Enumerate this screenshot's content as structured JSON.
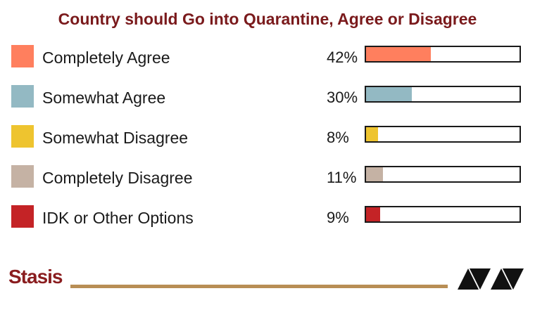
{
  "chart_data": {
    "type": "bar",
    "title": "Country should Go into Quarantine, Agree or Disagree",
    "categories": [
      "Completely Agree",
      "Somewhat Agree",
      "Somewhat Disagree",
      "Completely Disagree",
      "IDK or Other Options"
    ],
    "values": [
      42,
      30,
      8,
      11,
      9
    ],
    "value_labels": [
      "42%",
      "30%",
      "8%",
      "11%",
      "9%"
    ],
    "colors": [
      "#ff7f5e",
      "#93b9c3",
      "#eec42f",
      "#c5b2a4",
      "#c42326"
    ],
    "xlim": [
      0,
      100
    ],
    "orientation": "horizontal",
    "legend": "left"
  },
  "branding": {
    "left_logo_text": "Stasis",
    "right_logo_icon": "triangle-pattern-logo-icon",
    "rule_color": "#b88e55"
  }
}
